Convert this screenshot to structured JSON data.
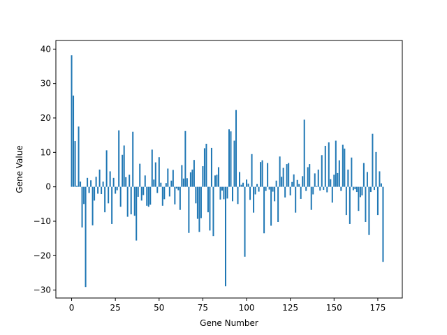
{
  "chart_data": {
    "type": "bar",
    "title": "",
    "xlabel": "Gene Number",
    "ylabel": "Gene Value",
    "xlim": [
      -9,
      189
    ],
    "ylim": [
      -32.3,
      42.5
    ],
    "xticks": [
      0,
      25,
      50,
      75,
      100,
      125,
      150,
      175
    ],
    "yticks": [
      -30,
      -20,
      -10,
      0,
      10,
      20,
      30,
      40
    ],
    "grid": false,
    "legend": "none",
    "color": "#1f77b4",
    "x_start": 0,
    "values": [
      38.2,
      26.5,
      13.3,
      0.3,
      17.5,
      1.5,
      -11.8,
      -5.0,
      -29.1,
      2.6,
      -1.8,
      1.9,
      -11.2,
      -4.0,
      2.9,
      -2.0,
      5.0,
      -2.1,
      1.5,
      -7.4,
      10.6,
      -4.8,
      4.5,
      -10.8,
      2.6,
      -2.0,
      -1.0,
      16.4,
      -5.8,
      9.3,
      12.0,
      2.8,
      -8.7,
      3.5,
      -8.0,
      16.0,
      -8.4,
      -15.6,
      -2.9,
      6.7,
      -4.0,
      -2.4,
      3.3,
      -5.5,
      -5.8,
      -5.2,
      10.8,
      2.1,
      7.1,
      -1.8,
      8.6,
      1.2,
      -5.5,
      -3.6,
      1.1,
      5.3,
      -2.8,
      1.8,
      4.9,
      -5.1,
      -0.5,
      -1.0,
      -6.7,
      6.3,
      2.4,
      16.2,
      2.5,
      -13.4,
      4.2,
      5.0,
      7.8,
      -4.8,
      -9.3,
      -13.1,
      -9.1,
      6.0,
      11.2,
      12.5,
      -7.4,
      -12.7,
      11.3,
      -14.3,
      3.3,
      3.5,
      5.7,
      -3.7,
      -1.1,
      -3.6,
      -28.9,
      -3.4,
      16.7,
      16.1,
      -4.2,
      13.4,
      22.3,
      -5.0,
      4.3,
      0.6,
      1.2,
      -20.3,
      2.1,
      0.9,
      -3.8,
      9.5,
      -7.5,
      -2.2,
      0.8,
      -1.4,
      7.2,
      7.7,
      -13.5,
      -1.2,
      6.9,
      -0.8,
      -11.3,
      -1.4,
      -4.2,
      1.8,
      -10.2,
      8.8,
      2.9,
      5.5,
      -3.1,
      6.6,
      6.9,
      -2.5,
      1.4,
      3.6,
      -7.5,
      2.0,
      0.8,
      -3.5,
      3.1,
      19.5,
      -1.2,
      5.7,
      6.6,
      -6.7,
      -2.2,
      3.9,
      0.2,
      5.0,
      -1.1,
      9.2,
      -0.9,
      11.9,
      -1.6,
      12.9,
      2.2,
      -4.6,
      3.5,
      13.4,
      4.0,
      7.7,
      -1.2,
      12.2,
      11.1,
      -8.2,
      5.0,
      -10.8,
      8.5,
      -1.0,
      -0.7,
      -1.5,
      -7.0,
      -3.0,
      -2.5,
      6.9,
      -10.2,
      4.3,
      -14.0,
      -1.5,
      15.4,
      -0.9,
      10.1,
      -8.2,
      4.5,
      1.0,
      -21.8
    ]
  }
}
